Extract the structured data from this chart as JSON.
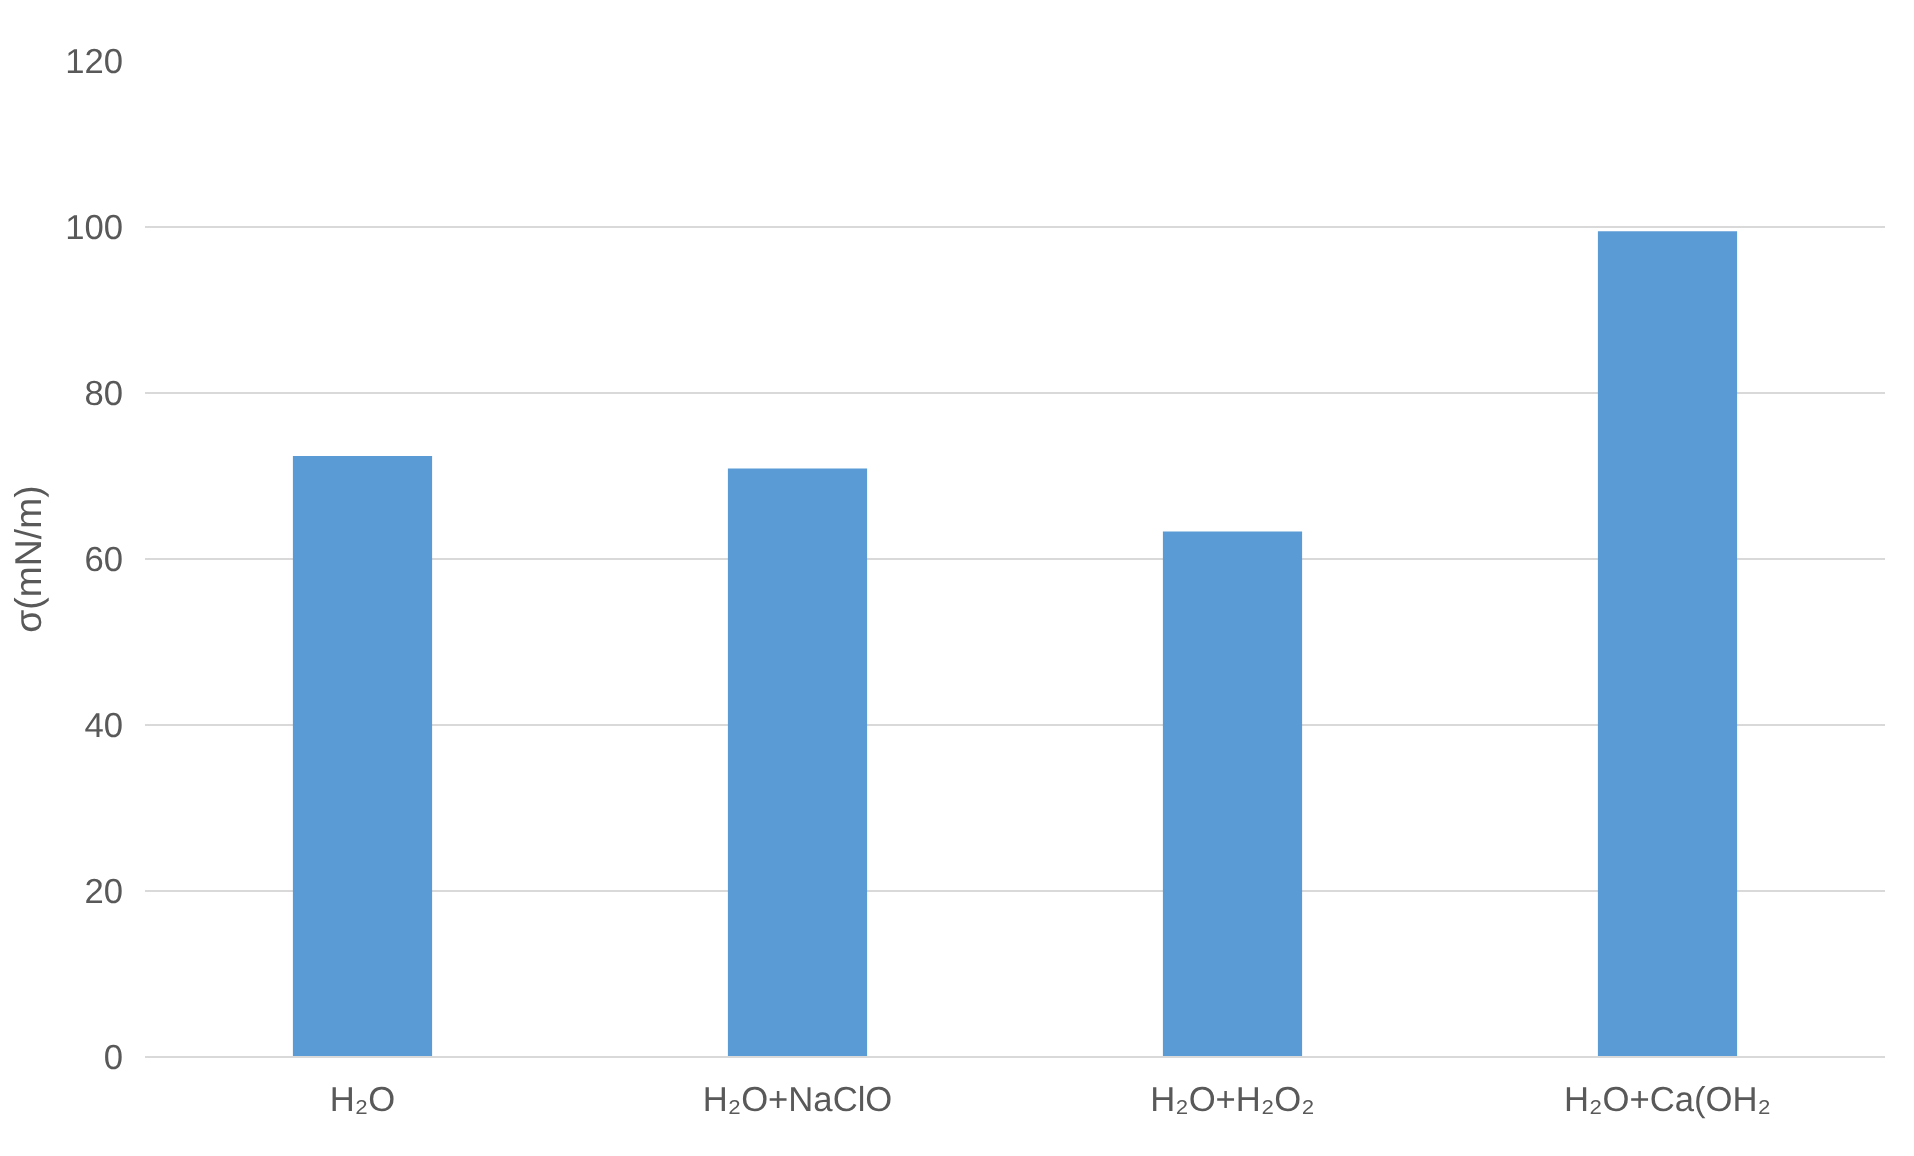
{
  "chart_data": {
    "type": "bar",
    "ylabel": "σ(mN/m)",
    "categories": [
      "H₂O",
      "H₂O+NaClO",
      "H₂O+H₂O₂",
      "H₂O+Ca(OH₂"
    ],
    "values": [
      72.4,
      70.9,
      63.3,
      99.5
    ],
    "color": "#5b9bd5",
    "ylim": [
      0,
      120
    ],
    "yticks": [
      0,
      20,
      40,
      60,
      80,
      100,
      120
    ],
    "grid": "y"
  }
}
